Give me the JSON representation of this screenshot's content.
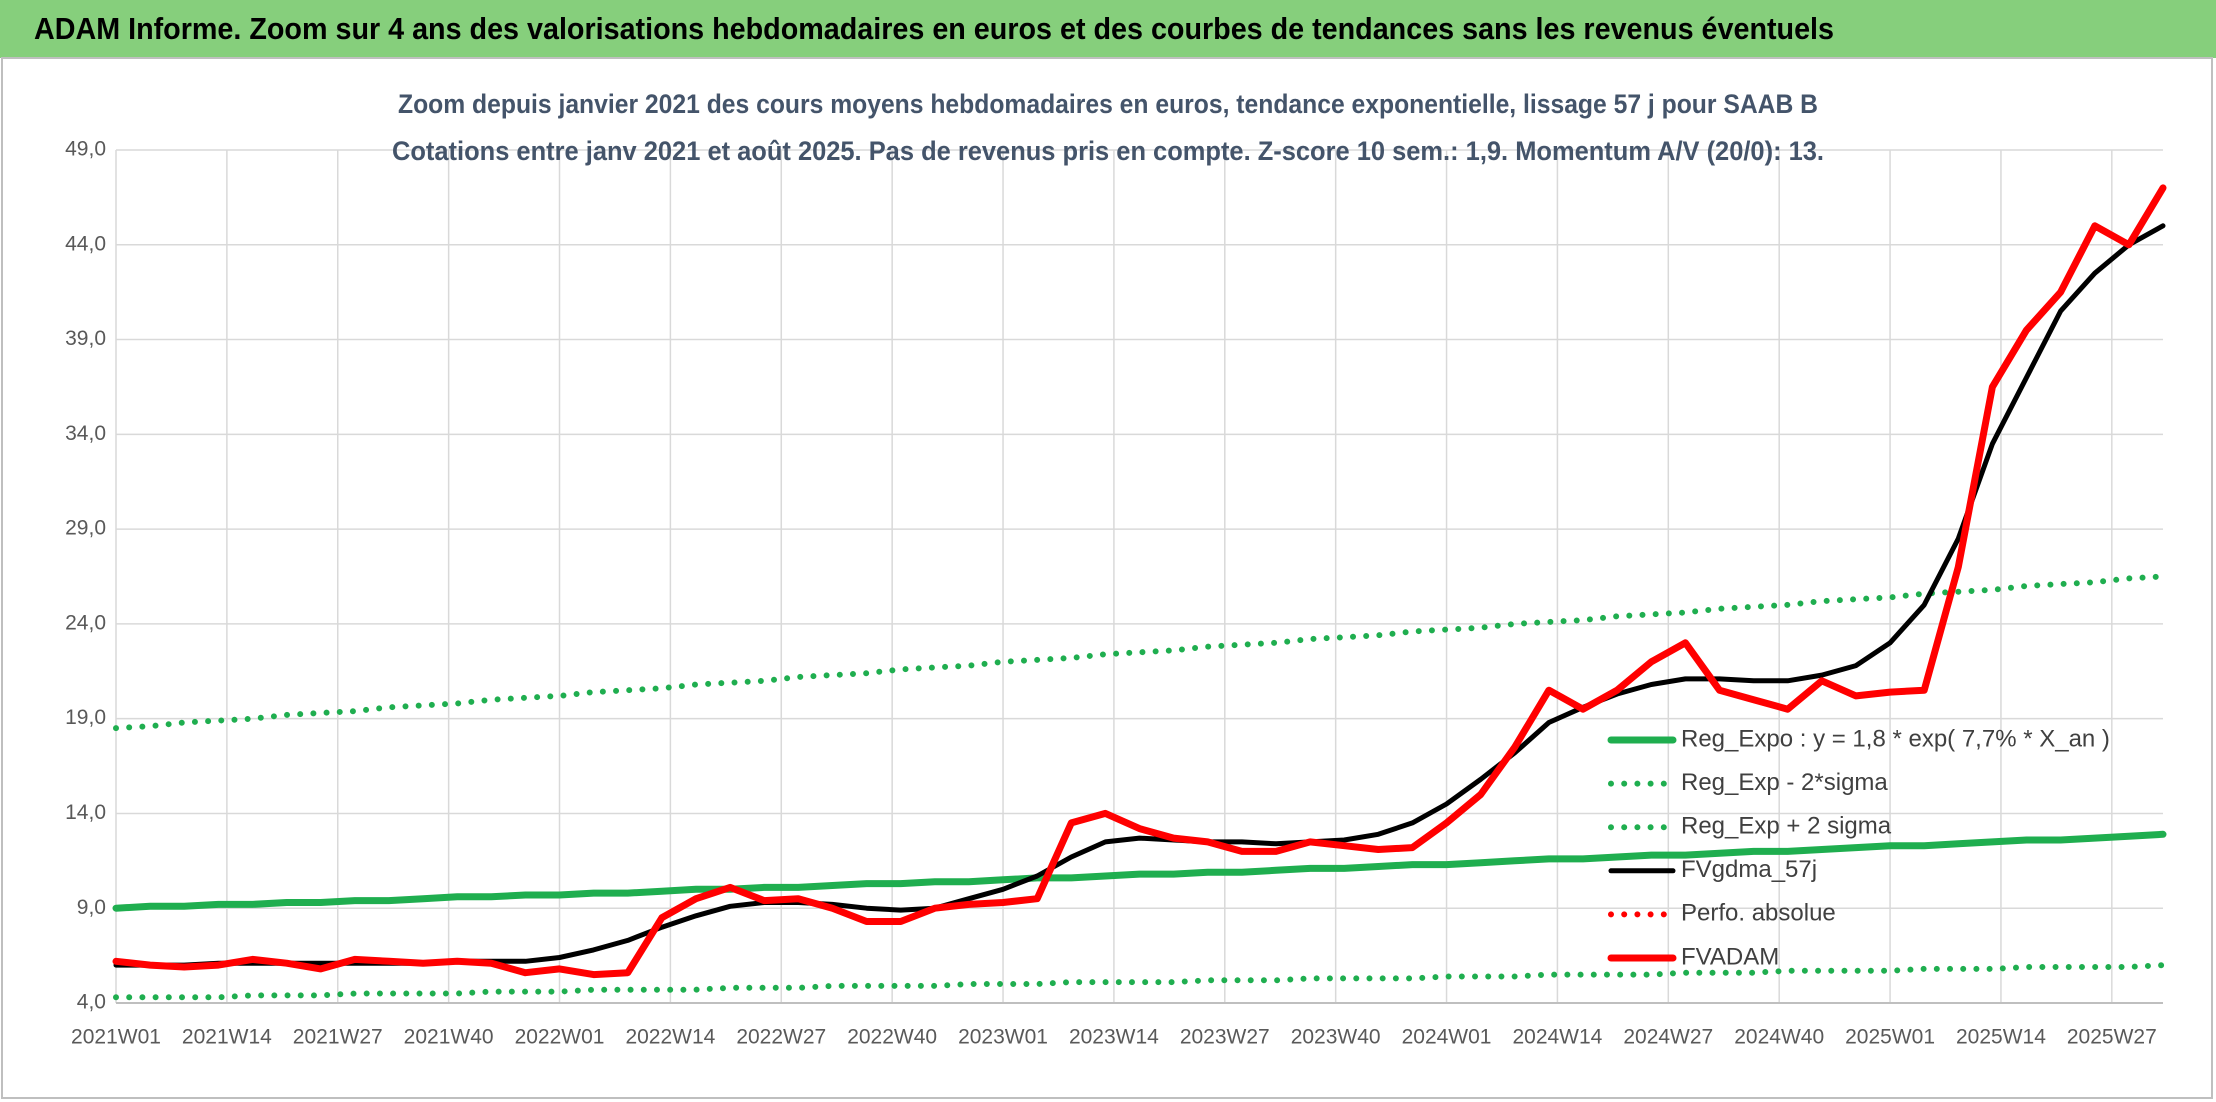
{
  "header": "ADAM Informe. Zoom sur 4 ans des valorisations hebdomadaires en euros et des courbes de tendances sans les revenus éventuels",
  "chart_data": {
    "type": "line",
    "title": "Zoom depuis janvier 2021 des cours moyens hebdomadaires en euros, tendance exponentielle, lissage 57 j pour SAAB B",
    "subtitle": "Cotations entre janv 2021 et août 2025. Pas de revenus pris en compte. Z-score 10 sem.: 1,9. Momentum A/V (20/0): 13.",
    "x": [
      0,
      4,
      8,
      12,
      16,
      20,
      24,
      28,
      32,
      36,
      40,
      44,
      48,
      52,
      56,
      60,
      64,
      68,
      72,
      76,
      80,
      84,
      88,
      92,
      96,
      100,
      104,
      108,
      112,
      116,
      120,
      124,
      128,
      132,
      136,
      140,
      144,
      148,
      152,
      156,
      160,
      164,
      168,
      172,
      176,
      180,
      184,
      188,
      192,
      196,
      200,
      204,
      208,
      212,
      216,
      220,
      224,
      228,
      232,
      236,
      240
    ],
    "xlim": [
      0,
      240
    ],
    "xticks": [
      {
        "value": 0,
        "label": "2021W01"
      },
      {
        "value": 13,
        "label": "2021W14"
      },
      {
        "value": 26,
        "label": "2021W27"
      },
      {
        "value": 39,
        "label": "2021W40"
      },
      {
        "value": 52,
        "label": "2022W01"
      },
      {
        "value": 65,
        "label": "2022W14"
      },
      {
        "value": 78,
        "label": "2022W27"
      },
      {
        "value": 91,
        "label": "2022W40"
      },
      {
        "value": 104,
        "label": "2023W01"
      },
      {
        "value": 117,
        "label": "2023W14"
      },
      {
        "value": 130,
        "label": "2023W27"
      },
      {
        "value": 143,
        "label": "2023W40"
      },
      {
        "value": 156,
        "label": "2024W01"
      },
      {
        "value": 169,
        "label": "2024W14"
      },
      {
        "value": 182,
        "label": "2024W27"
      },
      {
        "value": 195,
        "label": "2024W40"
      },
      {
        "value": 208,
        "label": "2025W01"
      },
      {
        "value": 221,
        "label": "2025W14"
      },
      {
        "value": 234,
        "label": "2025W27"
      }
    ],
    "ylim": [
      4,
      49
    ],
    "yticks": [
      {
        "value": 4,
        "label": "4,0"
      },
      {
        "value": 9,
        "label": "9,0"
      },
      {
        "value": 14,
        "label": "14,0"
      },
      {
        "value": 19,
        "label": "19,0"
      },
      {
        "value": 24,
        "label": "24,0"
      },
      {
        "value": 29,
        "label": "29,0"
      },
      {
        "value": 34,
        "label": "34,0"
      },
      {
        "value": 39,
        "label": "39,0"
      },
      {
        "value": 44,
        "label": "44,0"
      },
      {
        "value": 49,
        "label": "49,0"
      }
    ],
    "grid": true,
    "legend_position": "lower right",
    "series": [
      {
        "name": "Reg_Expo : y = 1,8 * exp( 7,7% *  X_an )",
        "color": "#1fae4f",
        "style": "solid",
        "values": [
          9.0,
          9.1,
          9.1,
          9.2,
          9.2,
          9.3,
          9.3,
          9.4,
          9.4,
          9.5,
          9.6,
          9.6,
          9.7,
          9.7,
          9.8,
          9.8,
          9.9,
          10.0,
          10.0,
          10.1,
          10.1,
          10.2,
          10.3,
          10.3,
          10.4,
          10.4,
          10.5,
          10.6,
          10.6,
          10.7,
          10.8,
          10.8,
          10.9,
          10.9,
          11.0,
          11.1,
          11.1,
          11.2,
          11.3,
          11.3,
          11.4,
          11.5,
          11.6,
          11.6,
          11.7,
          11.8,
          11.8,
          11.9,
          12.0,
          12.0,
          12.1,
          12.2,
          12.3,
          12.3,
          12.4,
          12.5,
          12.6,
          12.6,
          12.7,
          12.8,
          12.9
        ]
      },
      {
        "name": "Reg_Exp - 2*sigma",
        "color": "#1fae4f",
        "style": "dotted",
        "values": [
          4.3,
          4.3,
          4.3,
          4.3,
          4.4,
          4.4,
          4.4,
          4.5,
          4.5,
          4.5,
          4.5,
          4.6,
          4.6,
          4.6,
          4.7,
          4.7,
          4.7,
          4.7,
          4.8,
          4.8,
          4.8,
          4.9,
          4.9,
          4.9,
          4.9,
          5.0,
          5.0,
          5.0,
          5.1,
          5.1,
          5.1,
          5.1,
          5.2,
          5.2,
          5.2,
          5.3,
          5.3,
          5.3,
          5.3,
          5.4,
          5.4,
          5.4,
          5.5,
          5.5,
          5.5,
          5.5,
          5.6,
          5.6,
          5.6,
          5.7,
          5.7,
          5.7,
          5.7,
          5.8,
          5.8,
          5.8,
          5.9,
          5.9,
          5.9,
          5.9,
          6.0
        ]
      },
      {
        "name": "Reg_Exp + 2 sigma",
        "color": "#1fae4f",
        "style": "dotted",
        "values": [
          18.5,
          18.6,
          18.8,
          18.9,
          19.0,
          19.2,
          19.3,
          19.4,
          19.6,
          19.7,
          19.8,
          20.0,
          20.1,
          20.2,
          20.4,
          20.5,
          20.6,
          20.8,
          20.9,
          21.0,
          21.2,
          21.3,
          21.4,
          21.6,
          21.7,
          21.8,
          22.0,
          22.1,
          22.2,
          22.4,
          22.5,
          22.6,
          22.8,
          22.9,
          23.0,
          23.2,
          23.3,
          23.4,
          23.6,
          23.7,
          23.8,
          24.0,
          24.1,
          24.2,
          24.4,
          24.5,
          24.6,
          24.8,
          24.9,
          25.0,
          25.2,
          25.3,
          25.4,
          25.6,
          25.7,
          25.8,
          26.0,
          26.1,
          26.2,
          26.4,
          26.5
        ]
      },
      {
        "name": "FVgdma_57j",
        "color": "#000000",
        "style": "solid",
        "values": [
          6.0,
          6.0,
          6.0,
          6.1,
          6.1,
          6.1,
          6.1,
          6.1,
          6.1,
          6.1,
          6.2,
          6.2,
          6.2,
          6.4,
          6.8,
          7.3,
          8.0,
          8.6,
          9.1,
          9.3,
          9.3,
          9.2,
          9.0,
          8.9,
          9.0,
          9.5,
          10.0,
          10.7,
          11.7,
          12.5,
          12.7,
          12.6,
          12.5,
          12.5,
          12.4,
          12.5,
          12.6,
          12.9,
          13.5,
          14.5,
          15.8,
          17.2,
          18.8,
          19.6,
          20.3,
          20.8,
          21.1,
          21.1,
          21.0,
          21.0,
          21.3,
          21.8,
          23.0,
          25.0,
          28.5,
          33.5,
          37.0,
          40.5,
          42.5,
          44.0,
          45.0
        ]
      },
      {
        "name": "Perfo. absolue",
        "color": "#ff0000",
        "style": "dotted",
        "values": [
          null,
          null,
          null,
          null,
          null,
          null,
          null,
          null,
          null,
          null,
          null,
          null,
          null,
          null,
          null,
          null,
          null,
          null,
          null,
          null,
          null,
          null,
          null,
          null,
          null,
          null,
          null,
          null,
          null,
          null,
          null,
          null,
          null,
          null,
          null,
          null,
          null,
          null,
          null,
          null,
          null,
          null,
          null,
          null,
          null,
          null,
          null,
          null,
          null,
          null,
          null,
          null,
          null,
          null,
          null,
          null,
          null,
          null,
          null,
          null,
          null
        ]
      },
      {
        "name": "FVADAM",
        "color": "#ff0000",
        "style": "solid",
        "values": [
          6.2,
          6.0,
          5.9,
          6.0,
          6.3,
          6.1,
          5.8,
          6.3,
          6.2,
          6.1,
          6.2,
          6.1,
          5.6,
          5.8,
          5.5,
          5.6,
          8.5,
          9.5,
          10.1,
          9.4,
          9.5,
          9.0,
          8.3,
          8.3,
          9.0,
          9.2,
          9.3,
          9.5,
          13.5,
          14.0,
          13.2,
          12.7,
          12.5,
          12.0,
          12.0,
          12.5,
          12.3,
          12.1,
          12.2,
          13.5,
          15.0,
          17.5,
          20.5,
          19.5,
          20.5,
          22.0,
          23.0,
          20.5,
          20.0,
          19.5,
          21.0,
          20.2,
          20.4,
          20.5,
          27.0,
          36.5,
          39.5,
          41.5,
          45.0,
          44.0,
          47.0
        ]
      }
    ]
  }
}
